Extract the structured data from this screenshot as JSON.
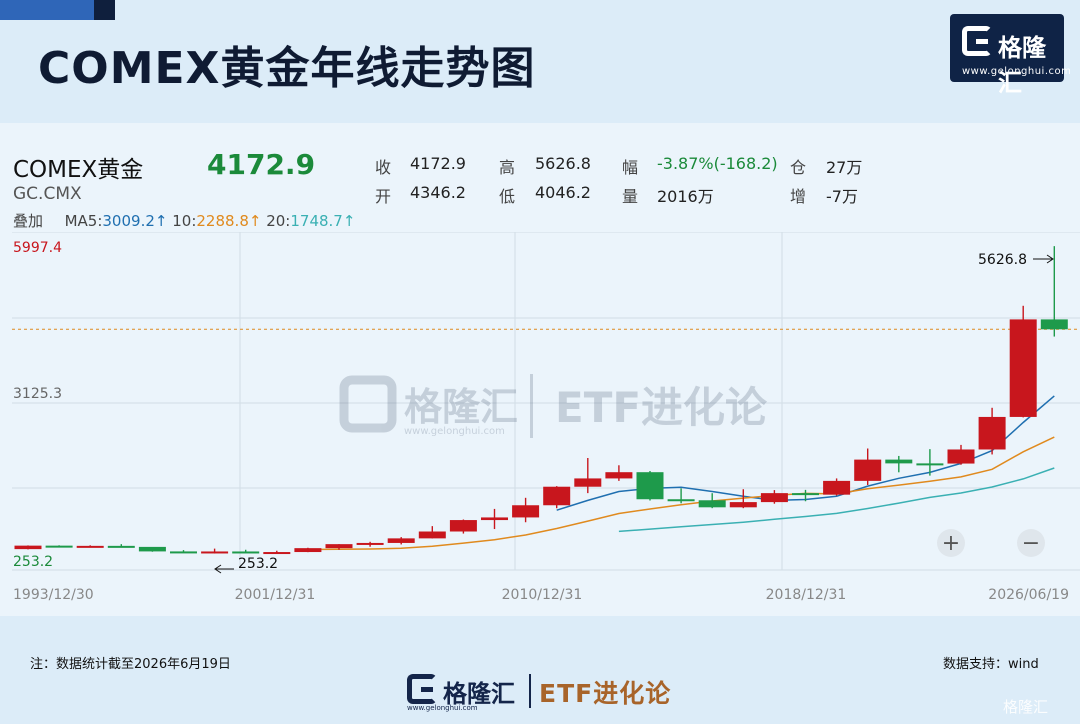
{
  "title": "COMEX黄金年线走势图",
  "brand": {
    "name": "格隆汇",
    "url": "www.gelonghui.com",
    "tagline": "ETF进化论"
  },
  "quote": {
    "name": "COMEX黄金",
    "code": "GC.CMX",
    "price": "4172.9",
    "close_label": "收",
    "close": "4172.9",
    "open_label": "开",
    "open": "4346.2",
    "high_label": "高",
    "high": "5626.8",
    "low_label": "低",
    "low": "4046.2",
    "change_label": "幅",
    "change": "-3.87%(-168.2)",
    "volume_label": "量",
    "volume": "2016万",
    "oi_label": "仓",
    "oi": "27万",
    "oi_change_label": "增",
    "oi_change": "-7万"
  },
  "ma": {
    "overlay_label": "叠加",
    "ma5_label": "MA5:",
    "ma5": "3009.2↑",
    "ma10_label": "10:",
    "ma10": "2288.8↑",
    "ma20_label": "20:",
    "ma20": "1748.7↑"
  },
  "footnote": "注：数据统计截至2026年6月19日",
  "source": "数据支持：wind",
  "corner_mark": "格隆汇",
  "colors": {
    "up": "#c8161d",
    "down": "#1e9a4b",
    "ma5": "#1f6fb0",
    "ma10": "#e08a1e",
    "ma20": "#3ab0b3",
    "last_price_line": "#e08a1e"
  },
  "chart_data": {
    "type": "candlestick",
    "ylim": [
      0,
      5997.4
    ],
    "y_ticks": [
      "5997.4",
      "3125.3",
      "253.2"
    ],
    "x_tick_labels": [
      "1993/12/30",
      "2001/12/31",
      "2010/12/31",
      "2018/12/31",
      "2026/06/19"
    ],
    "annotations": {
      "high": "5626.8",
      "low": "253.2"
    },
    "last_price": 4172.9,
    "candles": [
      {
        "year": 1993,
        "o": 330,
        "h": 395,
        "l": 325,
        "c": 391
      },
      {
        "year": 1994,
        "o": 391,
        "h": 397,
        "l": 370,
        "c": 383
      },
      {
        "year": 1995,
        "o": 383,
        "h": 397,
        "l": 370,
        "c": 387
      },
      {
        "year": 1996,
        "o": 387,
        "h": 417,
        "l": 367,
        "c": 369
      },
      {
        "year": 1997,
        "o": 369,
        "h": 367,
        "l": 284,
        "c": 290
      },
      {
        "year": 1998,
        "o": 290,
        "h": 313,
        "l": 273,
        "c": 288
      },
      {
        "year": 1999,
        "o": 288,
        "h": 339,
        "l": 253,
        "c": 289
      },
      {
        "year": 2000,
        "o": 289,
        "h": 319,
        "l": 264,
        "c": 273
      },
      {
        "year": 2001,
        "o": 273,
        "h": 302,
        "l": 253.2,
        "c": 279
      },
      {
        "year": 2002,
        "o": 279,
        "h": 354,
        "l": 277,
        "c": 347
      },
      {
        "year": 2003,
        "o": 347,
        "h": 417,
        "l": 319,
        "c": 417
      },
      {
        "year": 2004,
        "o": 417,
        "h": 458,
        "l": 372,
        "c": 438
      },
      {
        "year": 2005,
        "o": 438,
        "h": 540,
        "l": 412,
        "c": 518
      },
      {
        "year": 2006,
        "o": 518,
        "h": 732,
        "l": 517,
        "c": 638
      },
      {
        "year": 2007,
        "o": 638,
        "h": 848,
        "l": 602,
        "c": 838
      },
      {
        "year": 2008,
        "o": 838,
        "h": 1033,
        "l": 681,
        "c": 884
      },
      {
        "year": 2009,
        "o": 884,
        "h": 1227,
        "l": 800,
        "c": 1097
      },
      {
        "year": 2010,
        "o": 1097,
        "h": 1431,
        "l": 1045,
        "c": 1421
      },
      {
        "year": 2011,
        "o": 1421,
        "h": 1923,
        "l": 1309,
        "c": 1566
      },
      {
        "year": 2012,
        "o": 1566,
        "h": 1796,
        "l": 1523,
        "c": 1675
      },
      {
        "year": 2013,
        "o": 1675,
        "h": 1696,
        "l": 1180,
        "c": 1202
      },
      {
        "year": 2014,
        "o": 1202,
        "h": 1392,
        "l": 1131,
        "c": 1184
      },
      {
        "year": 2015,
        "o": 1184,
        "h": 1308,
        "l": 1046,
        "c": 1061
      },
      {
        "year": 2016,
        "o": 1061,
        "h": 1377,
        "l": 1046,
        "c": 1152
      },
      {
        "year": 2017,
        "o": 1152,
        "h": 1362,
        "l": 1124,
        "c": 1309
      },
      {
        "year": 2018,
        "o": 1309,
        "h": 1366,
        "l": 1167,
        "c": 1282
      },
      {
        "year": 2019,
        "o": 1282,
        "h": 1566,
        "l": 1267,
        "c": 1523
      },
      {
        "year": 2020,
        "o": 1523,
        "h": 2089,
        "l": 1451,
        "c": 1895
      },
      {
        "year": 2021,
        "o": 1895,
        "h": 1959,
        "l": 1673,
        "c": 1829
      },
      {
        "year": 2022,
        "o": 1829,
        "h": 2078,
        "l": 1615,
        "c": 1826
      },
      {
        "year": 2023,
        "o": 1826,
        "h": 2152,
        "l": 1805,
        "c": 2072
      },
      {
        "year": 2024,
        "o": 2072,
        "h": 2801,
        "l": 1985,
        "c": 2641
      },
      {
        "year": 2025,
        "o": 2641,
        "h": 4584,
        "l": 2633,
        "c": 4346.2
      },
      {
        "year": 2026,
        "o": 4346.2,
        "h": 5626.8,
        "l": 4046.2,
        "c": 4172.9
      }
    ],
    "ma5": [
      {
        "year": 2010,
        "v": 1010
      },
      {
        "year": 2011,
        "v": 1181
      },
      {
        "year": 2012,
        "v": 1337
      },
      {
        "year": 2013,
        "v": 1392
      },
      {
        "year": 2014,
        "v": 1410
      },
      {
        "year": 2015,
        "v": 1338
      },
      {
        "year": 2016,
        "v": 1255
      },
      {
        "year": 2017,
        "v": 1182
      },
      {
        "year": 2018,
        "v": 1198
      },
      {
        "year": 2019,
        "v": 1253
      },
      {
        "year": 2020,
        "v": 1432
      },
      {
        "year": 2021,
        "v": 1568
      },
      {
        "year": 2022,
        "v": 1671
      },
      {
        "year": 2023,
        "v": 1829
      },
      {
        "year": 2024,
        "v": 2053
      },
      {
        "year": 2025,
        "v": 2543
      },
      {
        "year": 2026,
        "v": 3009.2
      }
    ],
    "ma10": [
      {
        "year": 2002,
        "v": 324
      },
      {
        "year": 2003,
        "v": 327
      },
      {
        "year": 2004,
        "v": 333
      },
      {
        "year": 2005,
        "v": 346
      },
      {
        "year": 2006,
        "v": 380
      },
      {
        "year": 2007,
        "v": 435
      },
      {
        "year": 2008,
        "v": 495
      },
      {
        "year": 2009,
        "v": 577
      },
      {
        "year": 2010,
        "v": 691
      },
      {
        "year": 2011,
        "v": 820
      },
      {
        "year": 2012,
        "v": 953
      },
      {
        "year": 2013,
        "v": 1031
      },
      {
        "year": 2014,
        "v": 1106
      },
      {
        "year": 2015,
        "v": 1171
      },
      {
        "year": 2016,
        "v": 1222
      },
      {
        "year": 2017,
        "v": 1270
      },
      {
        "year": 2018,
        "v": 1304
      },
      {
        "year": 2019,
        "v": 1295
      },
      {
        "year": 2020,
        "v": 1385
      },
      {
        "year": 2021,
        "v": 1449
      },
      {
        "year": 2022,
        "v": 1516
      },
      {
        "year": 2023,
        "v": 1593
      },
      {
        "year": 2024,
        "v": 1726
      },
      {
        "year": 2025,
        "v": 2032
      },
      {
        "year": 2026,
        "v": 2288.8
      }
    ],
    "ma20": [
      {
        "year": 2012,
        "v": 639
      },
      {
        "year": 2013,
        "v": 680
      },
      {
        "year": 2014,
        "v": 720
      },
      {
        "year": 2015,
        "v": 760
      },
      {
        "year": 2016,
        "v": 800
      },
      {
        "year": 2017,
        "v": 852
      },
      {
        "year": 2018,
        "v": 900
      },
      {
        "year": 2019,
        "v": 955
      },
      {
        "year": 2020,
        "v": 1040
      },
      {
        "year": 2021,
        "v": 1134
      },
      {
        "year": 2022,
        "v": 1234
      },
      {
        "year": 2023,
        "v": 1312
      },
      {
        "year": 2024,
        "v": 1416
      },
      {
        "year": 2025,
        "v": 1557
      },
      {
        "year": 2026,
        "v": 1748.7
      }
    ]
  }
}
